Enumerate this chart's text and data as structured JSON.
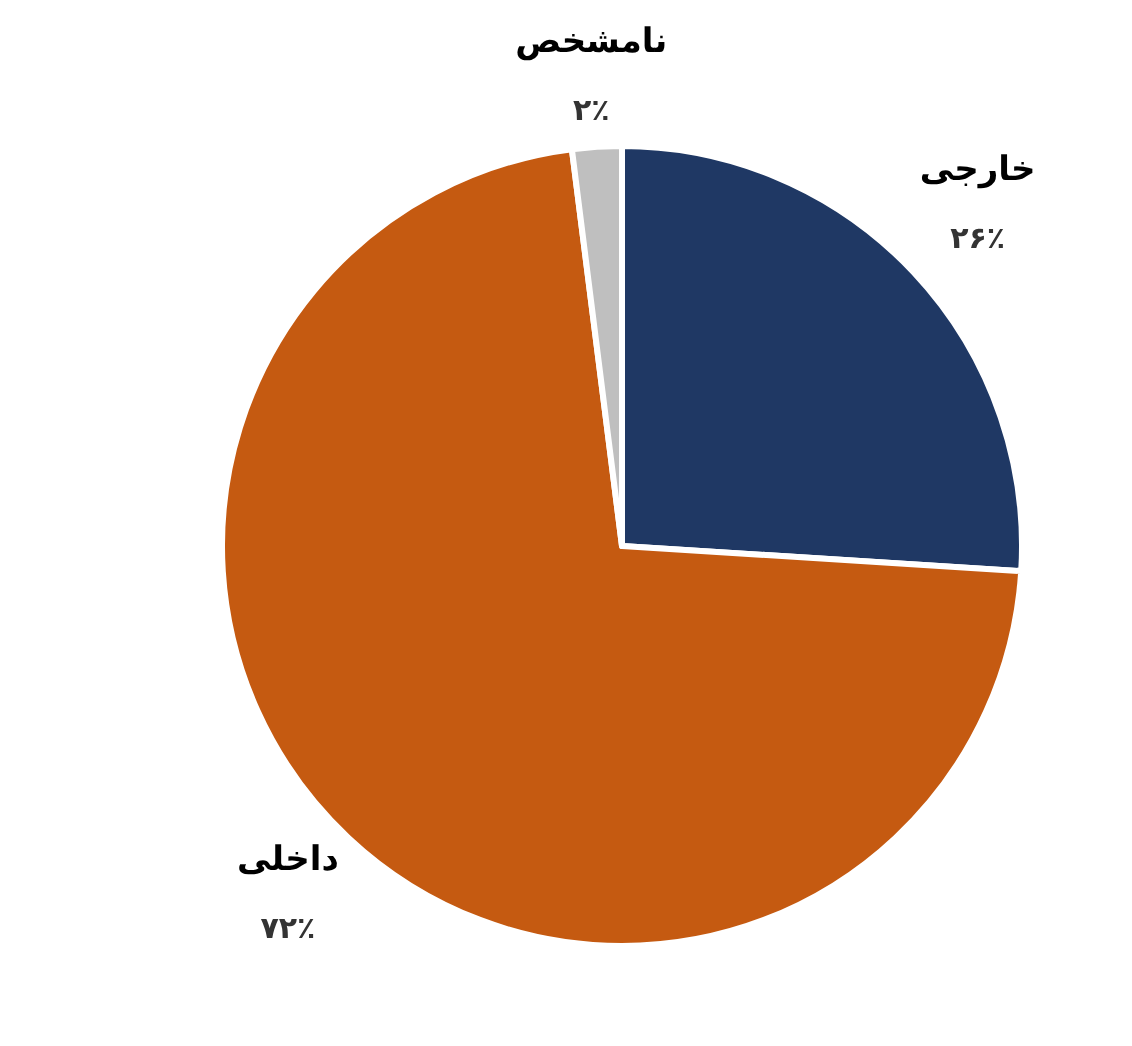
{
  "chart_data": {
    "type": "pie",
    "categories": [
      "خارجی",
      "داخلی",
      "نامشخص"
    ],
    "values": [
      26,
      72,
      2
    ],
    "value_labels": [
      "۲۶٪",
      "۷۲٪",
      "۲٪"
    ],
    "colors": [
      "#1f3864",
      "#c55a11",
      "#bfbfbf"
    ]
  }
}
